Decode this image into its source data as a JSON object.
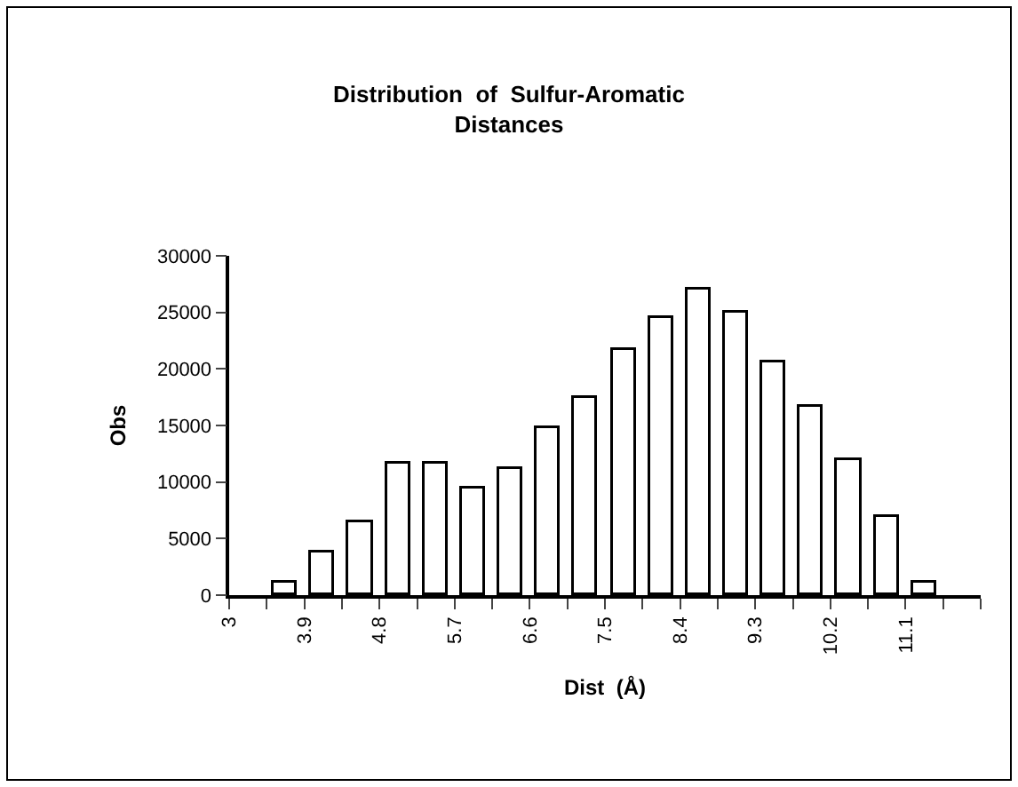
{
  "chart_data": {
    "type": "histogram",
    "title": "Distribution  of  Sulfur-Aromatic\nDistances",
    "xlabel": "Dist  (Å)",
    "ylabel": "Obs",
    "bins": [
      3.45,
      3.9,
      4.35,
      4.8,
      5.25,
      5.7,
      6.15,
      6.6,
      7.05,
      7.5,
      7.95,
      8.4,
      8.85,
      9.3,
      9.75,
      10.2,
      10.65,
      11.1,
      11.55
    ],
    "values": [
      1100,
      3800,
      6500,
      11600,
      11600,
      9400,
      11100,
      14700,
      17400,
      21700,
      24500,
      27000,
      24900,
      20500,
      16700,
      12000,
      6900,
      1100
    ],
    "color": "#ffffff",
    "xlim": [
      3,
      12
    ],
    "xticks": [
      3,
      {
        "value": 3.45,
        "label": null
      },
      3.9,
      {
        "value": 4.35,
        "label": null
      },
      4.8,
      {
        "value": 5.25,
        "label": null
      },
      5.7,
      {
        "value": 6.15,
        "label": null
      },
      6.6,
      {
        "value": 7.05,
        "label": null
      },
      7.5,
      {
        "value": 7.95,
        "label": null
      },
      8.4,
      {
        "value": 8.85,
        "label": null
      },
      9.3,
      {
        "value": 9.75,
        "label": null
      },
      10.2,
      {
        "value": 10.65,
        "label": null
      },
      11.1,
      {
        "value": 11.55,
        "label": null
      },
      {
        "value": 12,
        "label": null
      }
    ],
    "ylim": [
      0,
      30000
    ],
    "yticks": [
      0,
      5000,
      10000,
      15000,
      20000,
      25000,
      30000
    ]
  }
}
